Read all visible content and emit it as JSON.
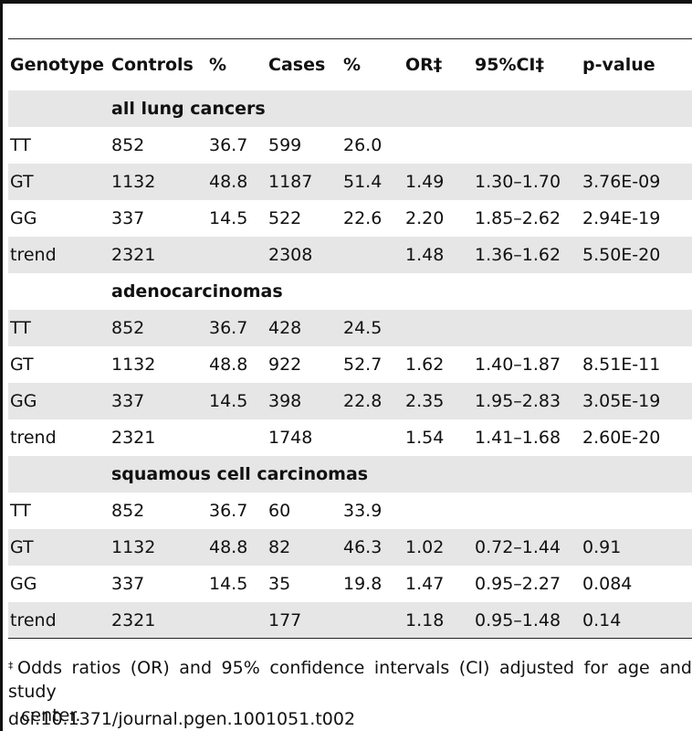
{
  "table": {
    "headers": [
      "Genotype",
      "Controls",
      "%",
      "Cases",
      "%",
      "OR‡",
      "95%CI‡",
      "p-value"
    ],
    "sections": [
      {
        "title": "all lung cancers",
        "rows": [
          [
            "TT",
            "852",
            "36.7",
            "599",
            "26.0",
            "",
            "",
            ""
          ],
          [
            "GT",
            "1132",
            "48.8",
            "1187",
            "51.4",
            "1.49",
            "1.30–1.70",
            "3.76E-09"
          ],
          [
            "GG",
            "337",
            "14.5",
            "522",
            "22.6",
            "2.20",
            "1.85–2.62",
            "2.94E-19"
          ],
          [
            "trend",
            "2321",
            "",
            "2308",
            "",
            "1.48",
            "1.36–1.62",
            "5.50E-20"
          ]
        ]
      },
      {
        "title": "adenocarcinomas",
        "rows": [
          [
            "TT",
            "852",
            "36.7",
            "428",
            "24.5",
            "",
            "",
            ""
          ],
          [
            "GT",
            "1132",
            "48.8",
            "922",
            "52.7",
            "1.62",
            "1.40–1.87",
            "8.51E-11"
          ],
          [
            "GG",
            "337",
            "14.5",
            "398",
            "22.8",
            "2.35",
            "1.95–2.83",
            "3.05E-19"
          ],
          [
            "trend",
            "2321",
            "",
            "1748",
            "",
            "1.54",
            "1.41–1.68",
            "2.60E-20"
          ]
        ]
      },
      {
        "title": "squamous cell carcinomas",
        "rows": [
          [
            "TT",
            "852",
            "36.7",
            "60",
            "33.9",
            "",
            "",
            ""
          ],
          [
            "GT",
            "1132",
            "48.8",
            "82",
            "46.3",
            "1.02",
            "0.72–1.44",
            "0.91"
          ],
          [
            "GG",
            "337",
            "14.5",
            "35",
            "19.8",
            "1.47",
            "0.95–2.27",
            "0.084"
          ],
          [
            "trend",
            "2321",
            "",
            "177",
            "",
            "1.18",
            "0.95–1.48",
            "0.14"
          ]
        ]
      }
    ]
  },
  "footnote": {
    "marker": "‡",
    "line1": "Odds ratios (OR) and 95% confidence intervals (CI) adjusted for age and study",
    "line2": "center."
  },
  "doi": "doi:10.1371/journal.pgen.1001051.t002"
}
